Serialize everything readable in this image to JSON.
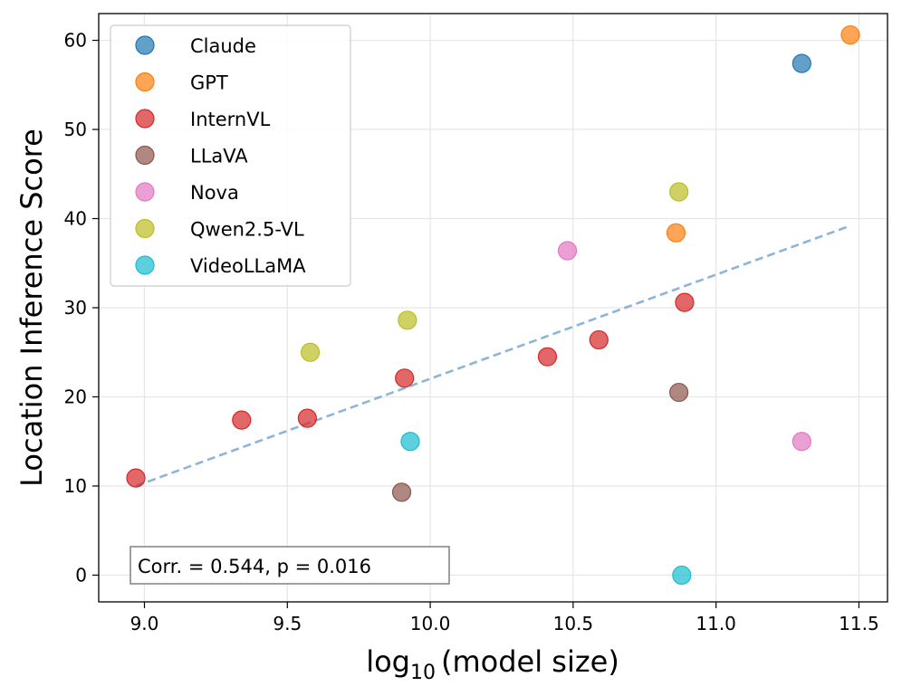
{
  "chart_data": {
    "type": "scatter",
    "title": "",
    "xlabel": "log",
    "xlabel_subscript": "10",
    "xlabel_suffix": "(model size)",
    "ylabel": "Location Inference Score",
    "xlim": [
      8.84,
      11.6
    ],
    "ylim": [
      -3,
      63
    ],
    "xticks": [
      9.0,
      9.5,
      10.0,
      10.5,
      11.0,
      11.5
    ],
    "xtick_labels": [
      "9.0",
      "9.5",
      "10.0",
      "10.5",
      "11.0",
      "11.5"
    ],
    "yticks": [
      0,
      10,
      20,
      30,
      40,
      50,
      60
    ],
    "ytick_labels": [
      "0",
      "10",
      "20",
      "30",
      "40",
      "50",
      "60"
    ],
    "grid": true,
    "legend_position": "top-left",
    "series": [
      {
        "name": "Claude",
        "color": "#1f77b4",
        "points": [
          {
            "x": 11.3,
            "y": 57.4
          }
        ]
      },
      {
        "name": "GPT",
        "color": "#ff7f0e",
        "points": [
          {
            "x": 11.47,
            "y": 60.6
          },
          {
            "x": 10.86,
            "y": 38.4
          }
        ]
      },
      {
        "name": "InternVL",
        "color": "#d62728",
        "points": [
          {
            "x": 8.97,
            "y": 10.9
          },
          {
            "x": 9.34,
            "y": 17.4
          },
          {
            "x": 9.57,
            "y": 17.6
          },
          {
            "x": 9.91,
            "y": 22.1
          },
          {
            "x": 10.41,
            "y": 24.5
          },
          {
            "x": 10.59,
            "y": 26.4
          },
          {
            "x": 10.89,
            "y": 30.6
          }
        ]
      },
      {
        "name": "LLaVA",
        "color": "#8c564b",
        "points": [
          {
            "x": 9.9,
            "y": 9.3
          },
          {
            "x": 10.87,
            "y": 20.5
          }
        ]
      },
      {
        "name": "Nova",
        "color": "#e377c2",
        "points": [
          {
            "x": 10.48,
            "y": 36.4
          },
          {
            "x": 11.3,
            "y": 15.0
          }
        ]
      },
      {
        "name": "Qwen2.5-VL",
        "color": "#bcbd22",
        "points": [
          {
            "x": 9.58,
            "y": 25.0
          },
          {
            "x": 9.92,
            "y": 28.6
          },
          {
            "x": 10.87,
            "y": 43.0
          }
        ]
      },
      {
        "name": "VideoLLaMA",
        "color": "#17becf",
        "points": [
          {
            "x": 9.93,
            "y": 15.0
          },
          {
            "x": 10.88,
            "y": 0.0
          }
        ]
      }
    ],
    "trendline": {
      "color": "#6fa3cf",
      "from": {
        "x": 8.97,
        "y": 10.0
      },
      "to": {
        "x": 11.47,
        "y": 39.2
      }
    },
    "annotation": "Corr. = 0.544, p = 0.016"
  }
}
